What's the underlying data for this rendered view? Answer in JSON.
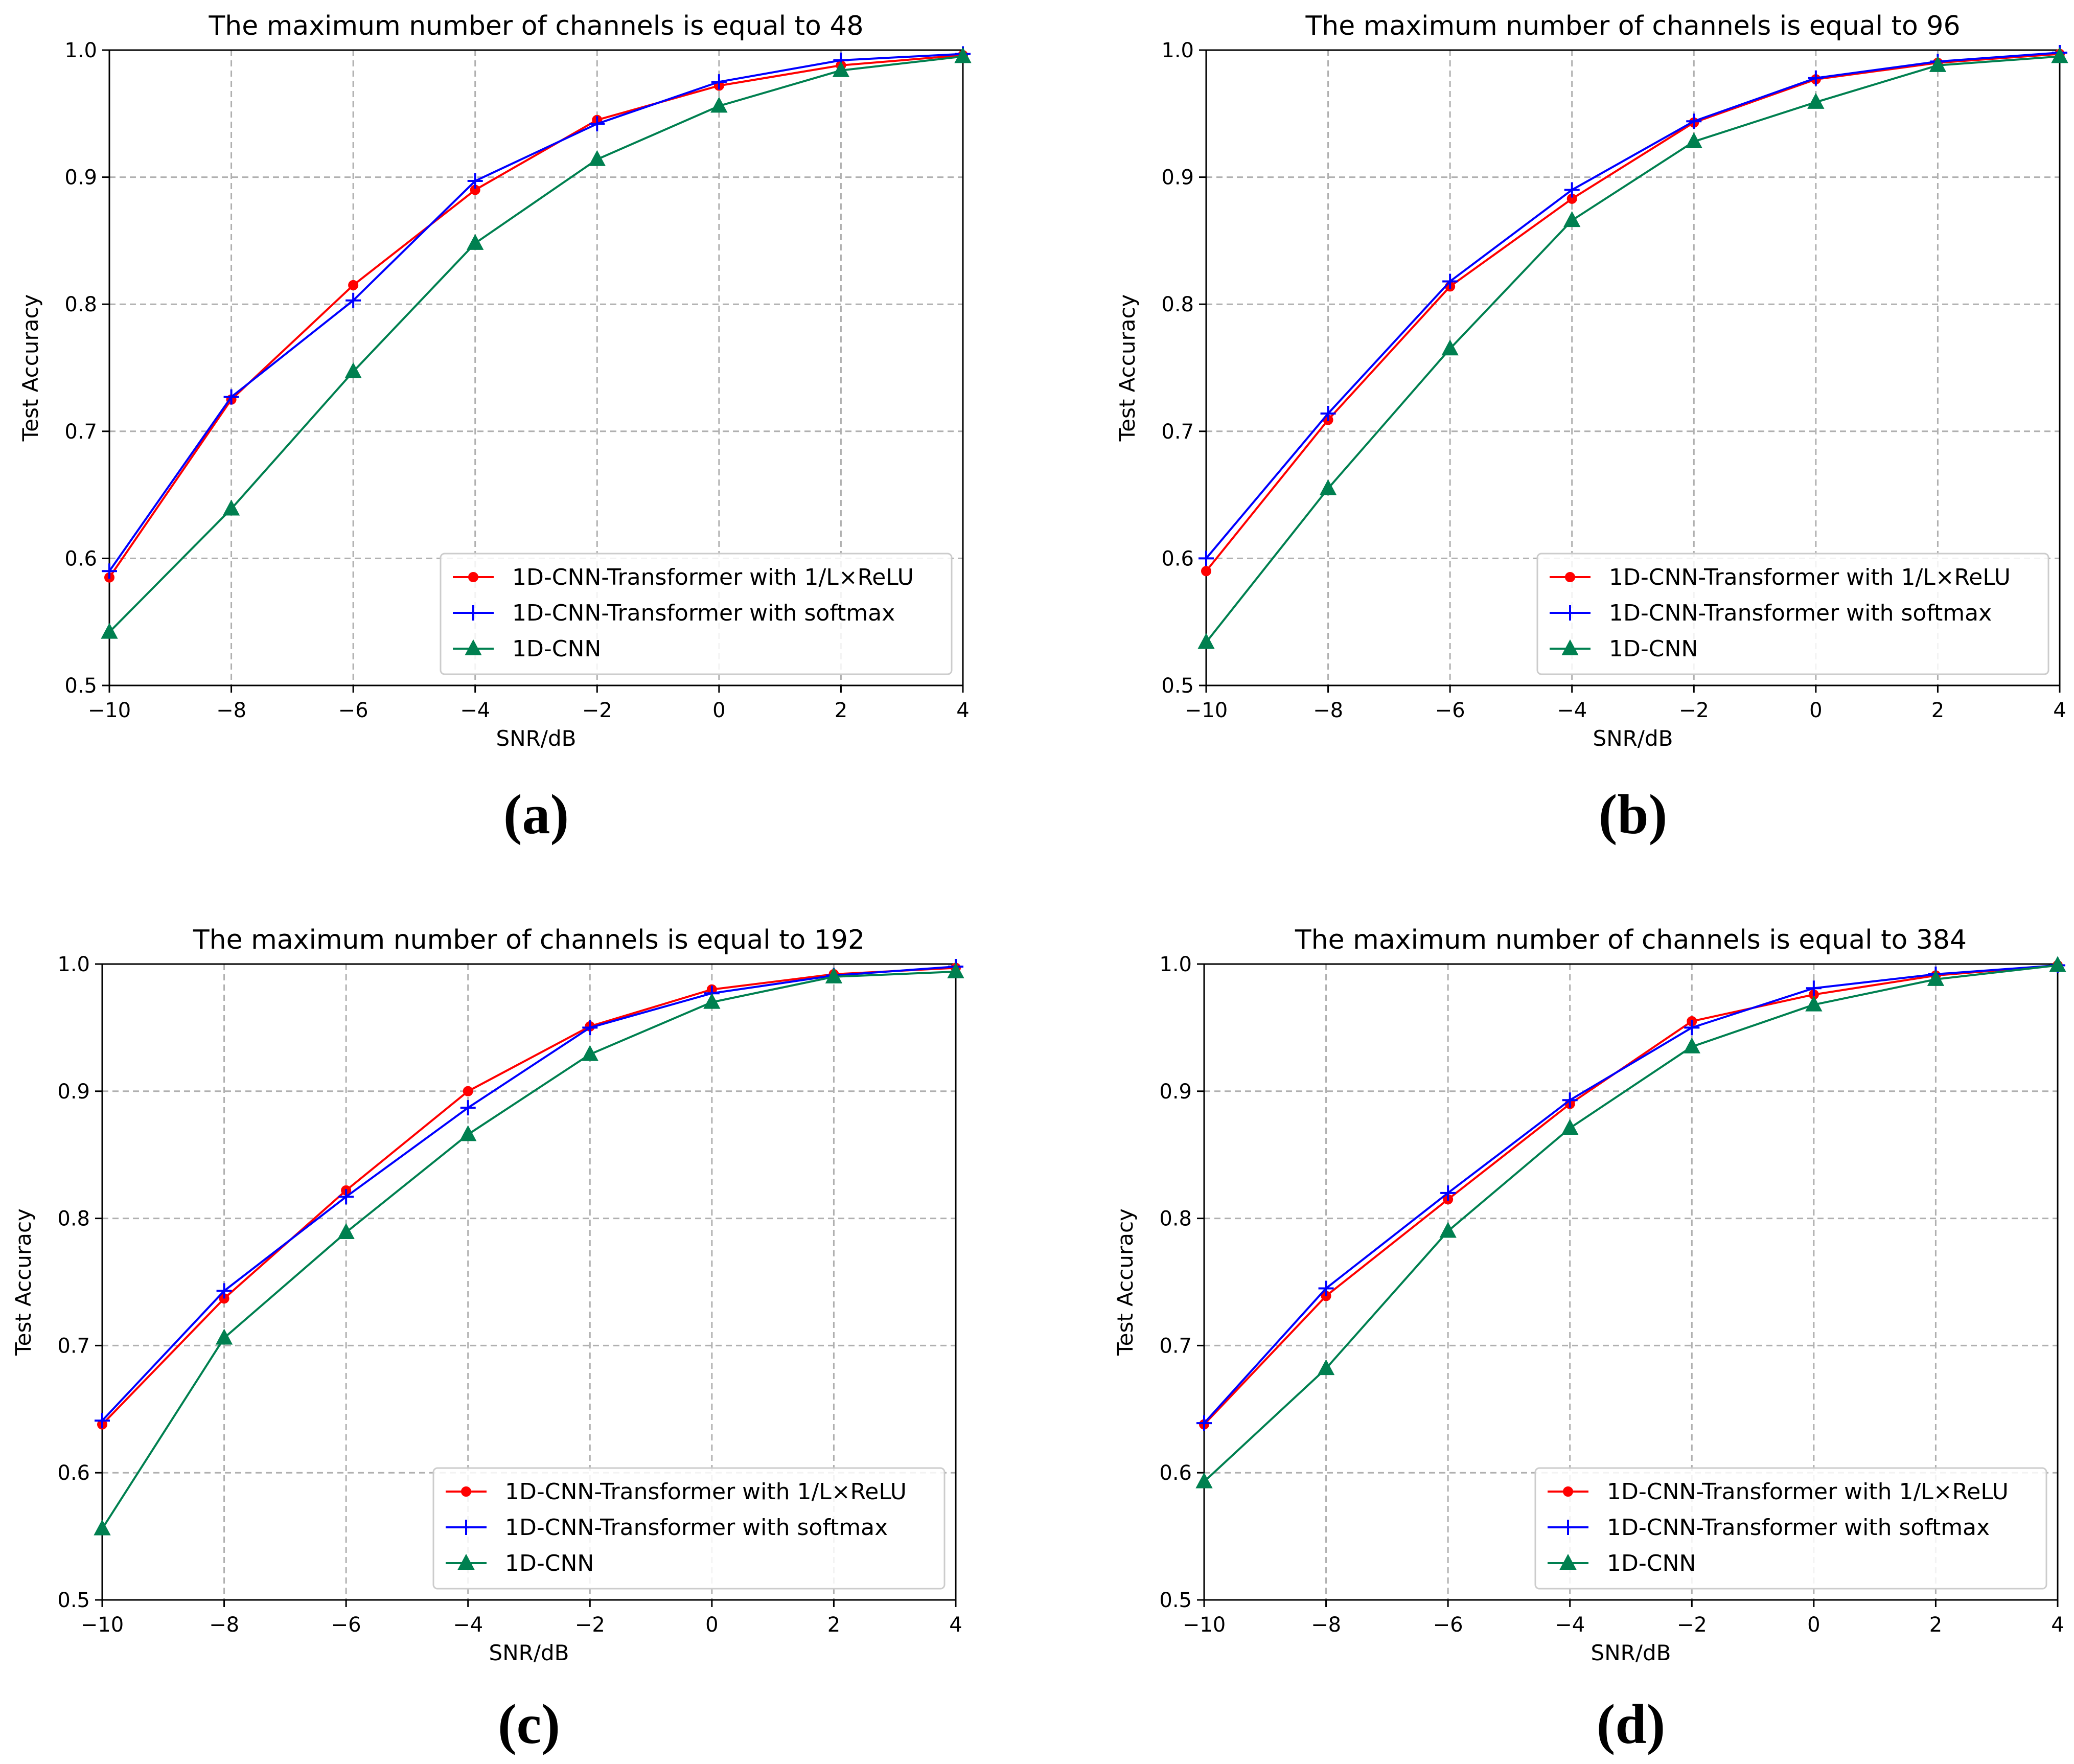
{
  "colors": {
    "relu": "#ff0000",
    "softmax": "#0000ff",
    "cnn": "#008050"
  },
  "chart_data": [
    {
      "type": "line",
      "panel_label": "(a)",
      "title": "The maximum number of channels is equal to 48",
      "xlabel": "SNR/dB",
      "ylabel": "Test Accuracy",
      "x": [
        -10,
        -8,
        -6,
        -4,
        -2,
        0,
        2,
        4
      ],
      "xlim": [
        -10,
        4
      ],
      "ylim": [
        0.5,
        1.0
      ],
      "x_ticks": [
        -10,
        -8,
        -6,
        -4,
        -2,
        0,
        2,
        4
      ],
      "x_tick_labels": [
        "−10",
        "−8",
        "−6",
        "−4",
        "−2",
        "0",
        "2",
        "4"
      ],
      "y_ticks": [
        0.5,
        0.6,
        0.7,
        0.8,
        0.9,
        1.0
      ],
      "y_tick_labels": [
        "0.5",
        "0.6",
        "0.7",
        "0.8",
        "0.9",
        "1.0"
      ],
      "grid": true,
      "legend_position": "lower-right",
      "series": [
        {
          "name": "1D-CNN-Transformer with 1/L×ReLU",
          "color": "#ff0000",
          "marker": "dot",
          "values": [
            0.585,
            0.725,
            0.815,
            0.89,
            0.945,
            0.972,
            0.988,
            0.996
          ]
        },
        {
          "name": "1D-CNN-Transformer with softmax",
          "color": "#0000ff",
          "marker": "plus",
          "values": [
            0.59,
            0.727,
            0.803,
            0.897,
            0.942,
            0.975,
            0.992,
            0.997
          ]
        },
        {
          "name": "1D-CNN",
          "color": "#008050",
          "marker": "triangle",
          "values": [
            0.542,
            0.639,
            0.747,
            0.848,
            0.914,
            0.956,
            0.984,
            0.995
          ]
        }
      ]
    },
    {
      "type": "line",
      "panel_label": "(b)",
      "title": "The maximum number of channels is equal to 96",
      "xlabel": "SNR/dB",
      "ylabel": "Test Accuracy",
      "x": [
        -10,
        -8,
        -6,
        -4,
        -2,
        0,
        2,
        4
      ],
      "xlim": [
        -10,
        4
      ],
      "ylim": [
        0.5,
        1.0
      ],
      "x_ticks": [
        -10,
        -8,
        -6,
        -4,
        -2,
        0,
        2,
        4
      ],
      "x_tick_labels": [
        "−10",
        "−8",
        "−6",
        "−4",
        "−2",
        "0",
        "2",
        "4"
      ],
      "y_ticks": [
        0.5,
        0.6,
        0.7,
        0.8,
        0.9,
        1.0
      ],
      "y_tick_labels": [
        "0.5",
        "0.6",
        "0.7",
        "0.8",
        "0.9",
        "1.0"
      ],
      "grid": true,
      "legend_position": "lower-right",
      "series": [
        {
          "name": "1D-CNN-Transformer with 1/L×ReLU",
          "color": "#ff0000",
          "marker": "dot",
          "values": [
            0.59,
            0.709,
            0.814,
            0.883,
            0.943,
            0.977,
            0.99,
            0.997
          ]
        },
        {
          "name": "1D-CNN-Transformer with softmax",
          "color": "#0000ff",
          "marker": "plus",
          "values": [
            0.6,
            0.714,
            0.818,
            0.89,
            0.944,
            0.978,
            0.991,
            0.998
          ]
        },
        {
          "name": "1D-CNN",
          "color": "#008050",
          "marker": "triangle",
          "values": [
            0.534,
            0.655,
            0.765,
            0.866,
            0.928,
            0.959,
            0.988,
            0.995
          ]
        }
      ]
    },
    {
      "type": "line",
      "panel_label": "(c)",
      "title": "The maximum number of channels is equal to 192",
      "xlabel": "SNR/dB",
      "ylabel": "Test Accuracy",
      "x": [
        -10,
        -8,
        -6,
        -4,
        -2,
        0,
        2,
        4
      ],
      "xlim": [
        -10,
        4
      ],
      "ylim": [
        0.5,
        1.0
      ],
      "x_ticks": [
        -10,
        -8,
        -6,
        -4,
        -2,
        0,
        2,
        4
      ],
      "x_tick_labels": [
        "−10",
        "−8",
        "−6",
        "−4",
        "−2",
        "0",
        "2",
        "4"
      ],
      "y_ticks": [
        0.5,
        0.6,
        0.7,
        0.8,
        0.9,
        1.0
      ],
      "y_tick_labels": [
        "0.5",
        "0.6",
        "0.7",
        "0.8",
        "0.9",
        "1.0"
      ],
      "grid": true,
      "legend_position": "lower-right",
      "series": [
        {
          "name": "1D-CNN-Transformer with 1/L×ReLU",
          "color": "#ff0000",
          "marker": "dot",
          "values": [
            0.638,
            0.737,
            0.822,
            0.9,
            0.951,
            0.98,
            0.992,
            0.997
          ]
        },
        {
          "name": "1D-CNN-Transformer with softmax",
          "color": "#0000ff",
          "marker": "plus",
          "values": [
            0.641,
            0.743,
            0.817,
            0.887,
            0.95,
            0.977,
            0.991,
            0.998
          ]
        },
        {
          "name": "1D-CNN",
          "color": "#008050",
          "marker": "triangle",
          "values": [
            0.556,
            0.706,
            0.789,
            0.866,
            0.929,
            0.97,
            0.99,
            0.994
          ]
        }
      ]
    },
    {
      "type": "line",
      "panel_label": "(d)",
      "title": "The maximum number of channels is equal to 384",
      "xlabel": "SNR/dB",
      "ylabel": "Test Accuracy",
      "x": [
        -10,
        -8,
        -6,
        -4,
        -2,
        0,
        2,
        4
      ],
      "xlim": [
        -10,
        4
      ],
      "ylim": [
        0.5,
        1.0
      ],
      "x_ticks": [
        -10,
        -8,
        -6,
        -4,
        -2,
        0,
        2,
        4
      ],
      "x_tick_labels": [
        "−10",
        "−8",
        "−6",
        "−4",
        "−2",
        "0",
        "2",
        "4"
      ],
      "y_ticks": [
        0.5,
        0.6,
        0.7,
        0.8,
        0.9,
        1.0
      ],
      "y_tick_labels": [
        "0.5",
        "0.6",
        "0.7",
        "0.8",
        "0.9",
        "1.0"
      ],
      "grid": true,
      "legend_position": "lower-right",
      "series": [
        {
          "name": "1D-CNN-Transformer with 1/L×ReLU",
          "color": "#ff0000",
          "marker": "dot",
          "values": [
            0.638,
            0.739,
            0.815,
            0.89,
            0.955,
            0.976,
            0.991,
            0.999
          ]
        },
        {
          "name": "1D-CNN-Transformer with softmax",
          "color": "#0000ff",
          "marker": "plus",
          "values": [
            0.639,
            0.745,
            0.82,
            0.893,
            0.95,
            0.981,
            0.992,
            0.999
          ]
        },
        {
          "name": "1D-CNN",
          "color": "#008050",
          "marker": "triangle",
          "values": [
            0.593,
            0.682,
            0.79,
            0.871,
            0.935,
            0.968,
            0.988,
            0.999
          ]
        }
      ]
    }
  ]
}
